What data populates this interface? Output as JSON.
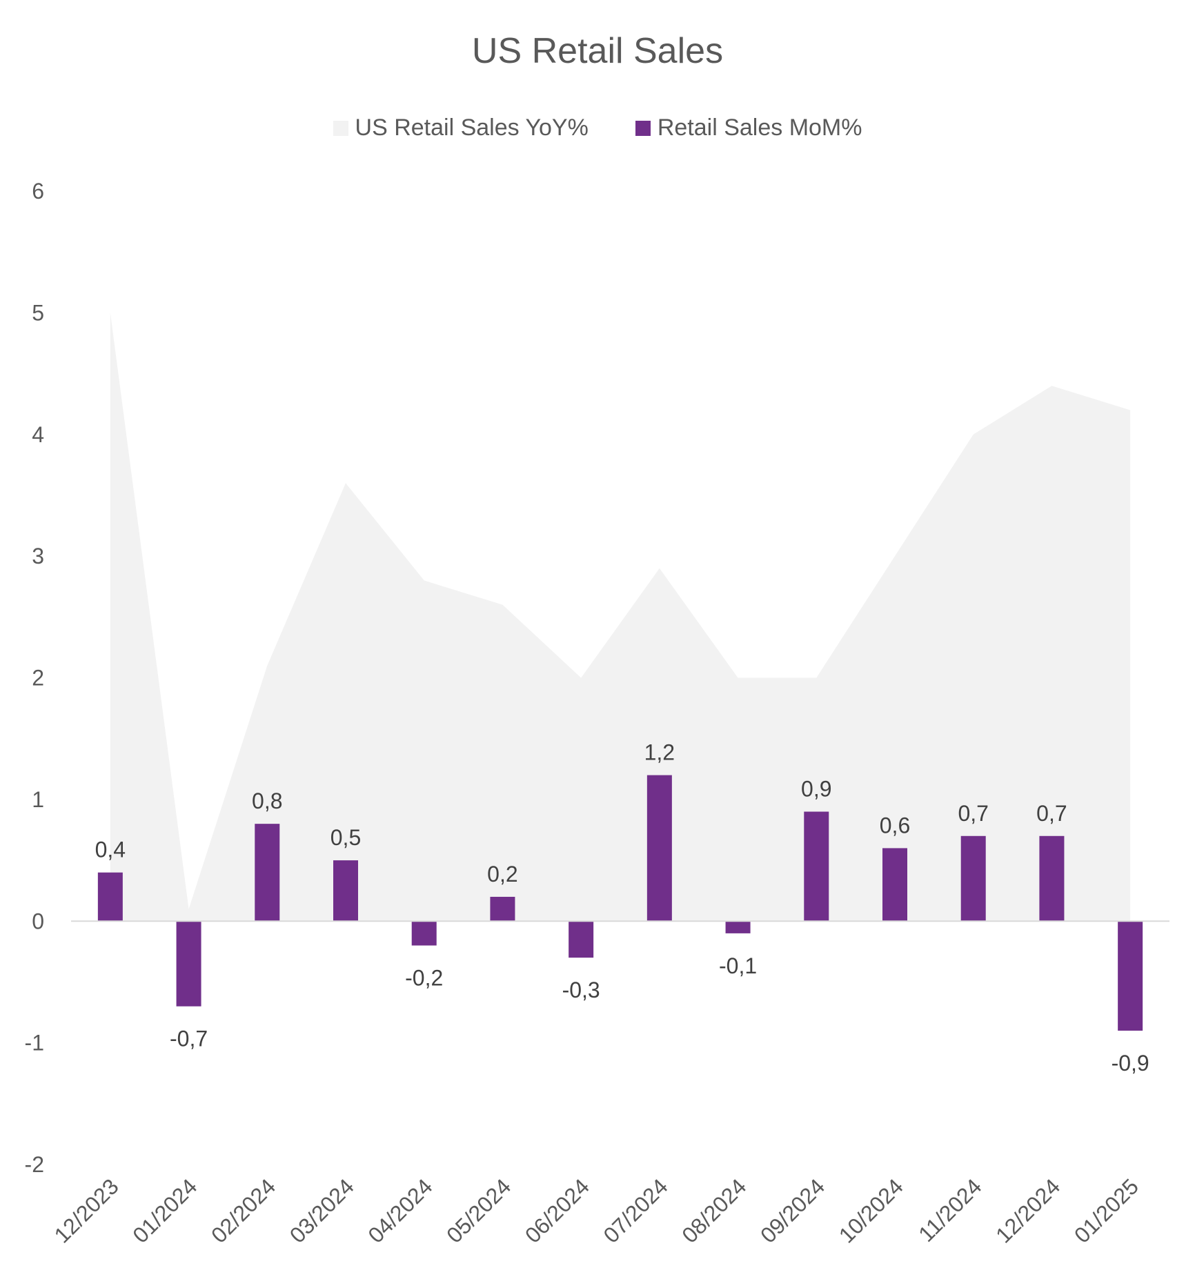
{
  "chart_data": {
    "type": "bar",
    "title": "US Retail Sales",
    "categories": [
      "12/2023",
      "01/2024",
      "02/2024",
      "03/2024",
      "04/2024",
      "05/2024",
      "06/2024",
      "07/2024",
      "08/2024",
      "09/2024",
      "10/2024",
      "11/2024",
      "12/2024",
      "01/2025"
    ],
    "series": [
      {
        "name": "US Retail Sales YoY%",
        "type": "area",
        "color": "#f2f2f2",
        "values": [
          5.0,
          0.1,
          2.1,
          3.6,
          2.8,
          2.6,
          2.0,
          2.9,
          2.0,
          2.0,
          3.0,
          4.0,
          4.4,
          4.2
        ]
      },
      {
        "name": "Retail Sales MoM%",
        "type": "bar",
        "color": "#702f8a",
        "values": [
          0.4,
          -0.7,
          0.8,
          0.5,
          -0.2,
          0.2,
          -0.3,
          1.2,
          -0.1,
          0.9,
          0.6,
          0.7,
          0.7,
          -0.9
        ],
        "data_labels": [
          "0,4",
          "-0,7",
          "0,8",
          "0,5",
          "-0,2",
          "0,2",
          "-0,3",
          "1,2",
          "-0,1",
          "0,9",
          "0,6",
          "0,7",
          "0,7",
          "-0,9"
        ]
      }
    ],
    "ylim": [
      -2,
      6
    ],
    "yticks": [
      "-2",
      "-1",
      "0",
      "1",
      "2",
      "3",
      "4",
      "5",
      "6"
    ],
    "grid": false,
    "legend_position": "top"
  }
}
